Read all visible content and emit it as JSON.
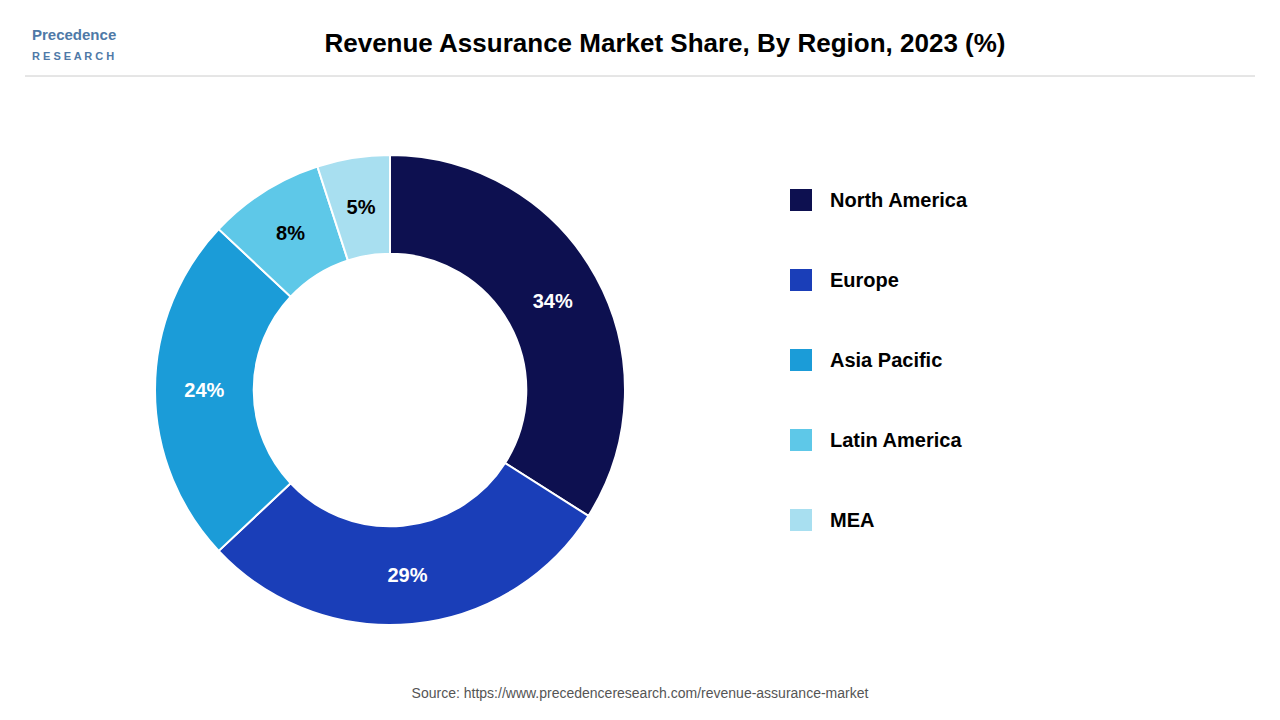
{
  "chart_data": {
    "type": "donut",
    "title": "Revenue Assurance Market Share, By Region, 2023 (%)",
    "categories": [
      "North America",
      "Europe",
      "Asia Pacific",
      "Latin America",
      "MEA"
    ],
    "values": [
      34,
      29,
      24,
      8,
      5
    ],
    "value_labels": [
      "34%",
      "29%",
      "24%",
      "8%",
      "5%"
    ],
    "colors": [
      "#0d1050",
      "#1a3eb8",
      "#1b9cd8",
      "#5ec8e8",
      "#a8dff0"
    ],
    "data_labels": true,
    "legend": "right",
    "annotations": [
      "Precedence",
      "R E S E A R C H",
      "Source: https://www.precedenceresearch.com/revenue-assurance-market"
    ]
  }
}
